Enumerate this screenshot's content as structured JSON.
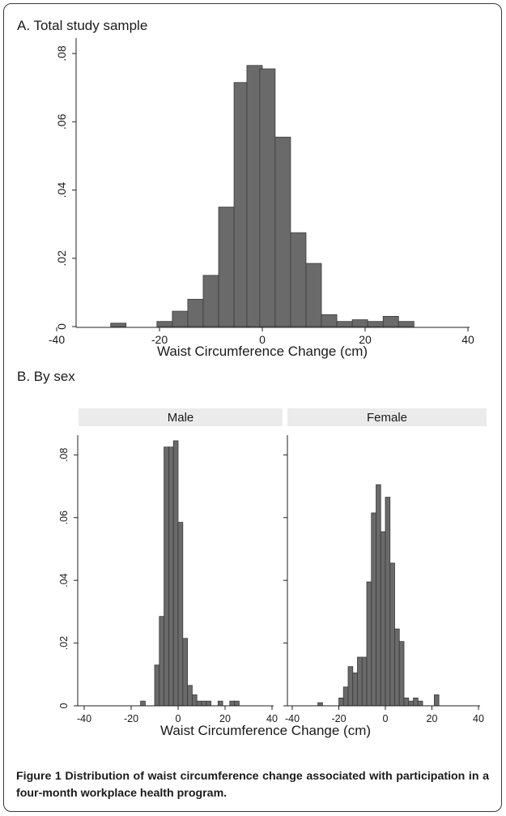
{
  "panels": {
    "a": {
      "title": "A. Total study sample"
    },
    "b": {
      "title": "B. By sex"
    }
  },
  "caption": {
    "label": "Figure 1",
    "text": "Distribution of waist circumference change associated with participation in a four-month workplace health program."
  },
  "colors": {
    "bar_fill": "#6a6a6a",
    "bar_stroke": "#3a3a3a",
    "strip_fill": "#ebebeb",
    "axis": "#222222"
  },
  "chart_data": [
    {
      "type": "bar",
      "panel": "A. Total study sample",
      "xlabel": "Waist Circumference Change (cm)",
      "ylabel": "",
      "xlim": [
        -40,
        40
      ],
      "ylim": [
        0,
        0.08
      ],
      "xticks": [
        "-40",
        "-20",
        "0",
        "20",
        "40"
      ],
      "yticks": [
        "0",
        ".02",
        ".04",
        ".06",
        ".08"
      ],
      "grid": false,
      "bin_width": 3,
      "bins": [
        {
          "x": -28,
          "y": 0.001
        },
        {
          "x": -19,
          "y": 0.0015
        },
        {
          "x": -16,
          "y": 0.0045
        },
        {
          "x": -13,
          "y": 0.008
        },
        {
          "x": -10,
          "y": 0.015
        },
        {
          "x": -7,
          "y": 0.035
        },
        {
          "x": -4,
          "y": 0.0715
        },
        {
          "x": -1.5,
          "y": 0.0765
        },
        {
          "x": 1,
          "y": 0.0755
        },
        {
          "x": 4,
          "y": 0.0555
        },
        {
          "x": 7,
          "y": 0.0275
        },
        {
          "x": 10,
          "y": 0.0185
        },
        {
          "x": 13,
          "y": 0.0035
        },
        {
          "x": 16,
          "y": 0.0015
        },
        {
          "x": 19,
          "y": 0.002
        },
        {
          "x": 22,
          "y": 0.0015
        },
        {
          "x": 25,
          "y": 0.003
        },
        {
          "x": 28,
          "y": 0.0015
        }
      ]
    },
    {
      "type": "bar",
      "panel": "B. By sex",
      "facet": "Male",
      "xlabel": "Waist Circumference Change (cm)",
      "ylabel": "",
      "xlim": [
        -40,
        40
      ],
      "ylim": [
        0,
        0.085
      ],
      "xticks": [
        "-40",
        "-20",
        "0",
        "20",
        "40"
      ],
      "yticks": [
        "0",
        ".02",
        ".04",
        ".06",
        ".08"
      ],
      "grid": false,
      "bin_width": 2,
      "bins": [
        {
          "x": -15,
          "y": 0.0015
        },
        {
          "x": -9,
          "y": 0.013
        },
        {
          "x": -7,
          "y": 0.0285
        },
        {
          "x": -5,
          "y": 0.0825
        },
        {
          "x": -3,
          "y": 0.0825
        },
        {
          "x": -1,
          "y": 0.0845
        },
        {
          "x": 1,
          "y": 0.0585
        },
        {
          "x": 3,
          "y": 0.0215
        },
        {
          "x": 5,
          "y": 0.0065
        },
        {
          "x": 7,
          "y": 0.0035
        },
        {
          "x": 9,
          "y": 0.0015
        },
        {
          "x": 11,
          "y": 0.0015
        },
        {
          "x": 13,
          "y": 0.0015
        },
        {
          "x": 18,
          "y": 0.0015
        },
        {
          "x": 23,
          "y": 0.0015
        },
        {
          "x": 25,
          "y": 0.0015
        }
      ]
    },
    {
      "type": "bar",
      "panel": "B. By sex",
      "facet": "Female",
      "xlabel": "Waist Circumference Change (cm)",
      "ylabel": "",
      "xlim": [
        -40,
        40
      ],
      "ylim": [
        0,
        0.085
      ],
      "xticks": [
        "-40",
        "-20",
        "0",
        "20",
        "40"
      ],
      "yticks": [
        "0",
        ".02",
        ".04",
        ".06",
        ".08"
      ],
      "grid": false,
      "bin_width": 2,
      "bins": [
        {
          "x": -28,
          "y": 0.001
        },
        {
          "x": -19,
          "y": 0.0025
        },
        {
          "x": -17,
          "y": 0.006
        },
        {
          "x": -15,
          "y": 0.0125
        },
        {
          "x": -13,
          "y": 0.0105
        },
        {
          "x": -11,
          "y": 0.0155
        },
        {
          "x": -9,
          "y": 0.0155
        },
        {
          "x": -7,
          "y": 0.0395
        },
        {
          "x": -5,
          "y": 0.0615
        },
        {
          "x": -3,
          "y": 0.0705
        },
        {
          "x": -1,
          "y": 0.0555
        },
        {
          "x": 1,
          "y": 0.0665
        },
        {
          "x": 3,
          "y": 0.0455
        },
        {
          "x": 5,
          "y": 0.0245
        },
        {
          "x": 7,
          "y": 0.0205
        },
        {
          "x": 9,
          "y": 0.0025
        },
        {
          "x": 11,
          "y": 0.0015
        },
        {
          "x": 13,
          "y": 0.0025
        },
        {
          "x": 15,
          "y": 0.0015
        },
        {
          "x": 22,
          "y": 0.0035
        }
      ]
    }
  ]
}
